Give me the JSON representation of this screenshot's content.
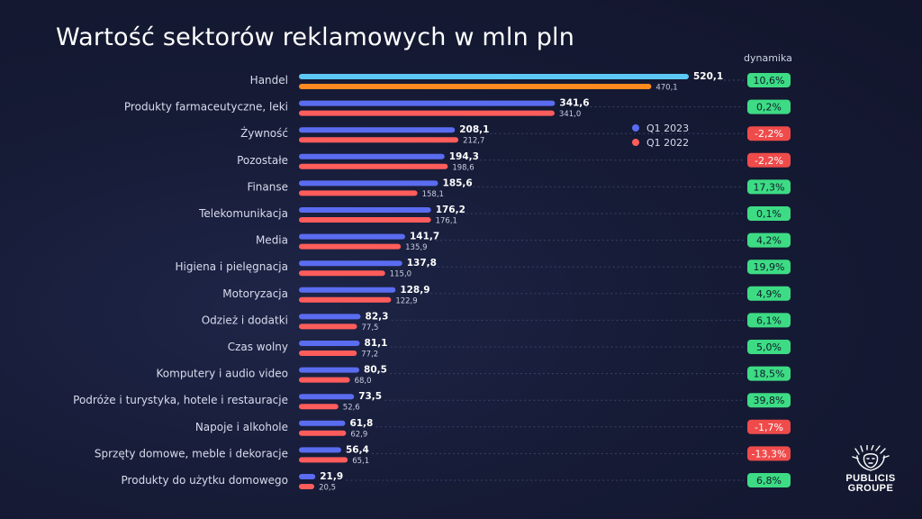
{
  "colors": {
    "q1_2023": "#5a6cf0",
    "q1_2022": "#ff5d5b",
    "q1_2023_top": "#5cc8f5",
    "q1_2022_top": "#ff8a1f",
    "positive": "#3ddc84",
    "negative": "#ef4b4b"
  },
  "chart_data": {
    "type": "bar",
    "orientation": "horizontal",
    "title": "Wartość sektorów reklamowych w mln pln",
    "dynamics_header": "dynamika",
    "legend_position": "top-right",
    "categories": [
      "Handel",
      "Produkty farmaceutyczne, leki",
      "Żywność",
      "Pozostałe",
      "Finanse",
      "Telekomunikacja",
      "Media",
      "Higiena i pielęgnacja",
      "Motoryzacja",
      "Odzież i dodatki",
      "Czas wolny",
      "Komputery i audio video",
      "Podróże i turystyka, hotele i restauracje",
      "Napoje i alkohole",
      "Sprzęty domowe, meble i dekoracje",
      "Produkty do użytku domowego"
    ],
    "series": [
      {
        "name": "Q1 2023",
        "values": [
          520.1,
          341.6,
          208.1,
          194.3,
          185.6,
          176.2,
          141.7,
          137.8,
          128.9,
          82.3,
          81.1,
          80.5,
          73.5,
          61.8,
          56.4,
          21.9
        ],
        "labels": [
          "520,1",
          "341,6",
          "208,1",
          "194,3",
          "185,6",
          "176,2",
          "141,7",
          "137,8",
          "128,9",
          "82,3",
          "81,1",
          "80,5",
          "73,5",
          "61,8",
          "56,4",
          "21,9"
        ]
      },
      {
        "name": "Q1 2022",
        "values": [
          470.1,
          341.0,
          212.7,
          198.6,
          158.1,
          176.1,
          135.9,
          115.0,
          122.9,
          77.5,
          77.2,
          68.0,
          52.6,
          62.9,
          65.1,
          20.5
        ],
        "labels": [
          "470,1",
          "341,0",
          "212,7",
          "198,6",
          "158,1",
          "176,1",
          "135,9",
          "115,0",
          "122,9",
          "77,5",
          "77,2",
          "68,0",
          "52,6",
          "62,9",
          "65,1",
          "20,5"
        ]
      }
    ],
    "dynamics": [
      "10,6%",
      "0,2%",
      "-2,2%",
      "-2,2%",
      "17,3%",
      "0,1%",
      "4,2%",
      "19,9%",
      "4,9%",
      "6,1%",
      "5,0%",
      "18,5%",
      "39,8%",
      "-1,7%",
      "-13,3%",
      "6,8%"
    ],
    "dynamics_sign": [
      "+",
      "+",
      "-",
      "-",
      "+",
      "+",
      "+",
      "+",
      "+",
      "+",
      "+",
      "+",
      "+",
      "-",
      "-",
      "+"
    ]
  },
  "logo": {
    "line1": "PUBLICIS",
    "line2": "GROUPE"
  }
}
